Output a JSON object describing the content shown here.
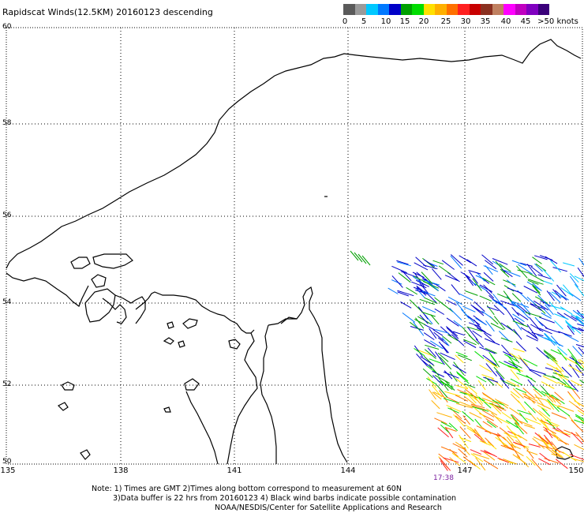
{
  "title": "Rapidscat Winds(12.5KM) 20160123 descending",
  "legend": {
    "labels": [
      "0",
      "5",
      "10",
      "15",
      "20",
      "25",
      "30",
      "35",
      "40",
      "45",
      ">50 knots"
    ],
    "colors": [
      "#5a5a5a",
      "#9a9a9a",
      "#00c8ff",
      "#0078ff",
      "#0000c8",
      "#00a000",
      "#00dd00",
      "#ffe000",
      "#ffb000",
      "#ff7000",
      "#ff2020",
      "#c80000",
      "#8a3020",
      "#c08060",
      "#ff00ff",
      "#c000c0",
      "#8000c0",
      "#3a007a"
    ]
  },
  "axes": {
    "y_labels": [
      "60",
      "58",
      "56",
      "54",
      "52",
      "50"
    ],
    "x_labels": [
      "135",
      "138",
      "141",
      "144",
      "147",
      "150"
    ]
  },
  "time_label": "17:38",
  "notes": [
    "Note: 1) Times are GMT 2)Times along bottom correspond to measurement at 60N",
    "3)Data buffer is 22 hrs from 20160123 4) Black wind barbs indicate possible contamination",
    "NOAA/NESDIS/Center for Satellite Applications and Research"
  ]
}
